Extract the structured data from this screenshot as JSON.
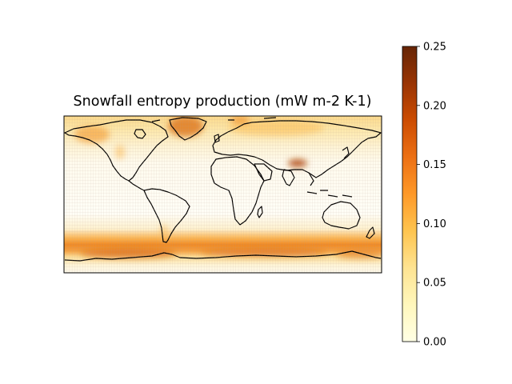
{
  "figure": {
    "title": "Snowfall entropy production (mW m-2 K-1)"
  },
  "map": {
    "projection": "plate-carree",
    "extent": {
      "lon": [
        -180,
        180
      ],
      "lat": [
        -90,
        90
      ]
    },
    "coastlines": true,
    "gridlines": true,
    "field": "snowfall entropy production",
    "colormap": "YlOrBr",
    "regions": [
      {
        "name": "Southern Ocean storm track",
        "lat": -55,
        "level": 0.14
      },
      {
        "name": "Greenland",
        "lat": 73,
        "level": 0.18
      },
      {
        "name": "Tibetan Plateau",
        "lat": 32,
        "level": 0.17
      },
      {
        "name": "Alaska / NW Canada",
        "lat": 60,
        "level": 0.1
      },
      {
        "name": "Northern Eurasia",
        "lat": 60,
        "level": 0.07
      }
    ]
  },
  "colorbar": {
    "vmin": 0.0,
    "vmax": 0.25,
    "ticks": [
      "0.00",
      "0.05",
      "0.10",
      "0.15",
      "0.20",
      "0.25"
    ],
    "colors": [
      "#ffffe5",
      "#fff7bc",
      "#fee391",
      "#fec44f",
      "#fe9929",
      "#ec7014",
      "#cc4c02",
      "#993404",
      "#662506"
    ]
  }
}
